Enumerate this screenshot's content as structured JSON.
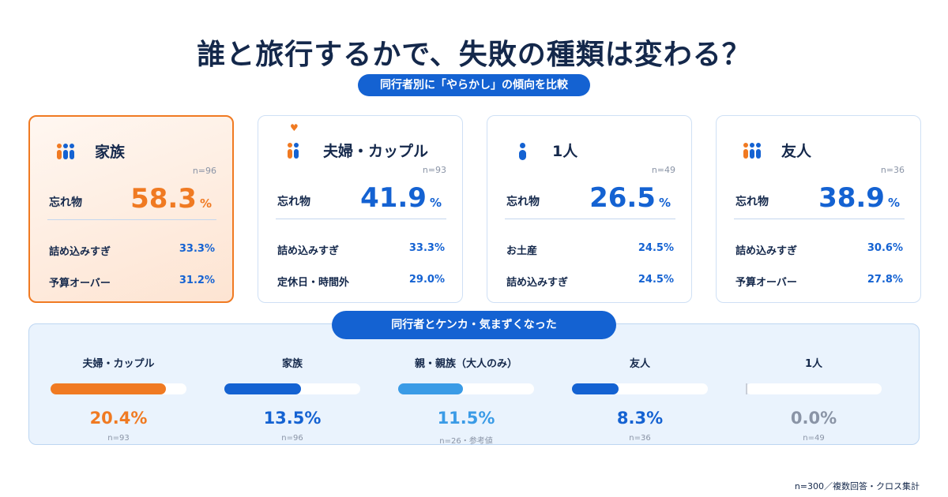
{
  "title": "誰と旅行するかで、失敗の種類は変わる？",
  "subtitle": "同行者別に「やらかし」の傾向を比較",
  "colors": {
    "accent": "#1462d2",
    "highlight": "#f07a22",
    "teal": "#3a9be6",
    "zero": "#8a94a6"
  },
  "cards": [
    {
      "icon": "family-icon",
      "title": "家族",
      "n": "n=96",
      "main_label": "忘れ物",
      "main_value": "58.3",
      "main_unit": "%",
      "rows": [
        {
          "label": "詰め込みすぎ",
          "value": "33.3%"
        },
        {
          "label": "予算オーバー",
          "value": "31.2%"
        }
      ]
    },
    {
      "icon": "couple-icon",
      "title": "夫婦・カップル",
      "n": "n=93",
      "main_label": "忘れ物",
      "main_value": "41.9",
      "main_unit": "%",
      "rows": [
        {
          "label": "詰め込みすぎ",
          "value": "33.3%"
        },
        {
          "label": "定休日・時間外",
          "value": "29.0%"
        }
      ]
    },
    {
      "icon": "person-icon",
      "title": "1人",
      "n": "n=49",
      "main_label": "忘れ物",
      "main_value": "26.5",
      "main_unit": "%",
      "rows": [
        {
          "label": "お土産",
          "value": "24.5%"
        },
        {
          "label": "詰め込みすぎ",
          "value": "24.5%"
        }
      ]
    },
    {
      "icon": "friends-icon",
      "title": "友人",
      "n": "n=36",
      "main_label": "忘れ物",
      "main_value": "38.9",
      "main_unit": "%",
      "rows": [
        {
          "label": "詰め込みすぎ",
          "value": "30.6%"
        },
        {
          "label": "予算オーバー",
          "value": "27.8%"
        }
      ]
    }
  ],
  "conflict_section": {
    "title": "同行者とケンカ・気まずくなった",
    "items": [
      {
        "label": "夫婦・カップル",
        "value": "20.4%",
        "n": "n=93"
      },
      {
        "label": "家族",
        "value": "13.5%",
        "n": "n=96"
      },
      {
        "label": "親・親族（大人のみ）",
        "value": "11.5%",
        "n": "n=26・参考値"
      },
      {
        "label": "友人",
        "value": "8.3%",
        "n": "n=36"
      },
      {
        "label": "1人",
        "value": "0.0%",
        "n": "n=49"
      }
    ]
  },
  "chart_data": {
    "type": "bar",
    "title": "同行者とケンカ・気まずくなった",
    "categories": [
      "夫婦・カップル",
      "家族",
      "親・親族（大人のみ）",
      "友人",
      "1人"
    ],
    "values": [
      20.4,
      13.5,
      11.5,
      8.3,
      0.0
    ],
    "ylim": [
      0,
      24
    ]
  },
  "footnote": "n=300／複数回答・クロス集計"
}
